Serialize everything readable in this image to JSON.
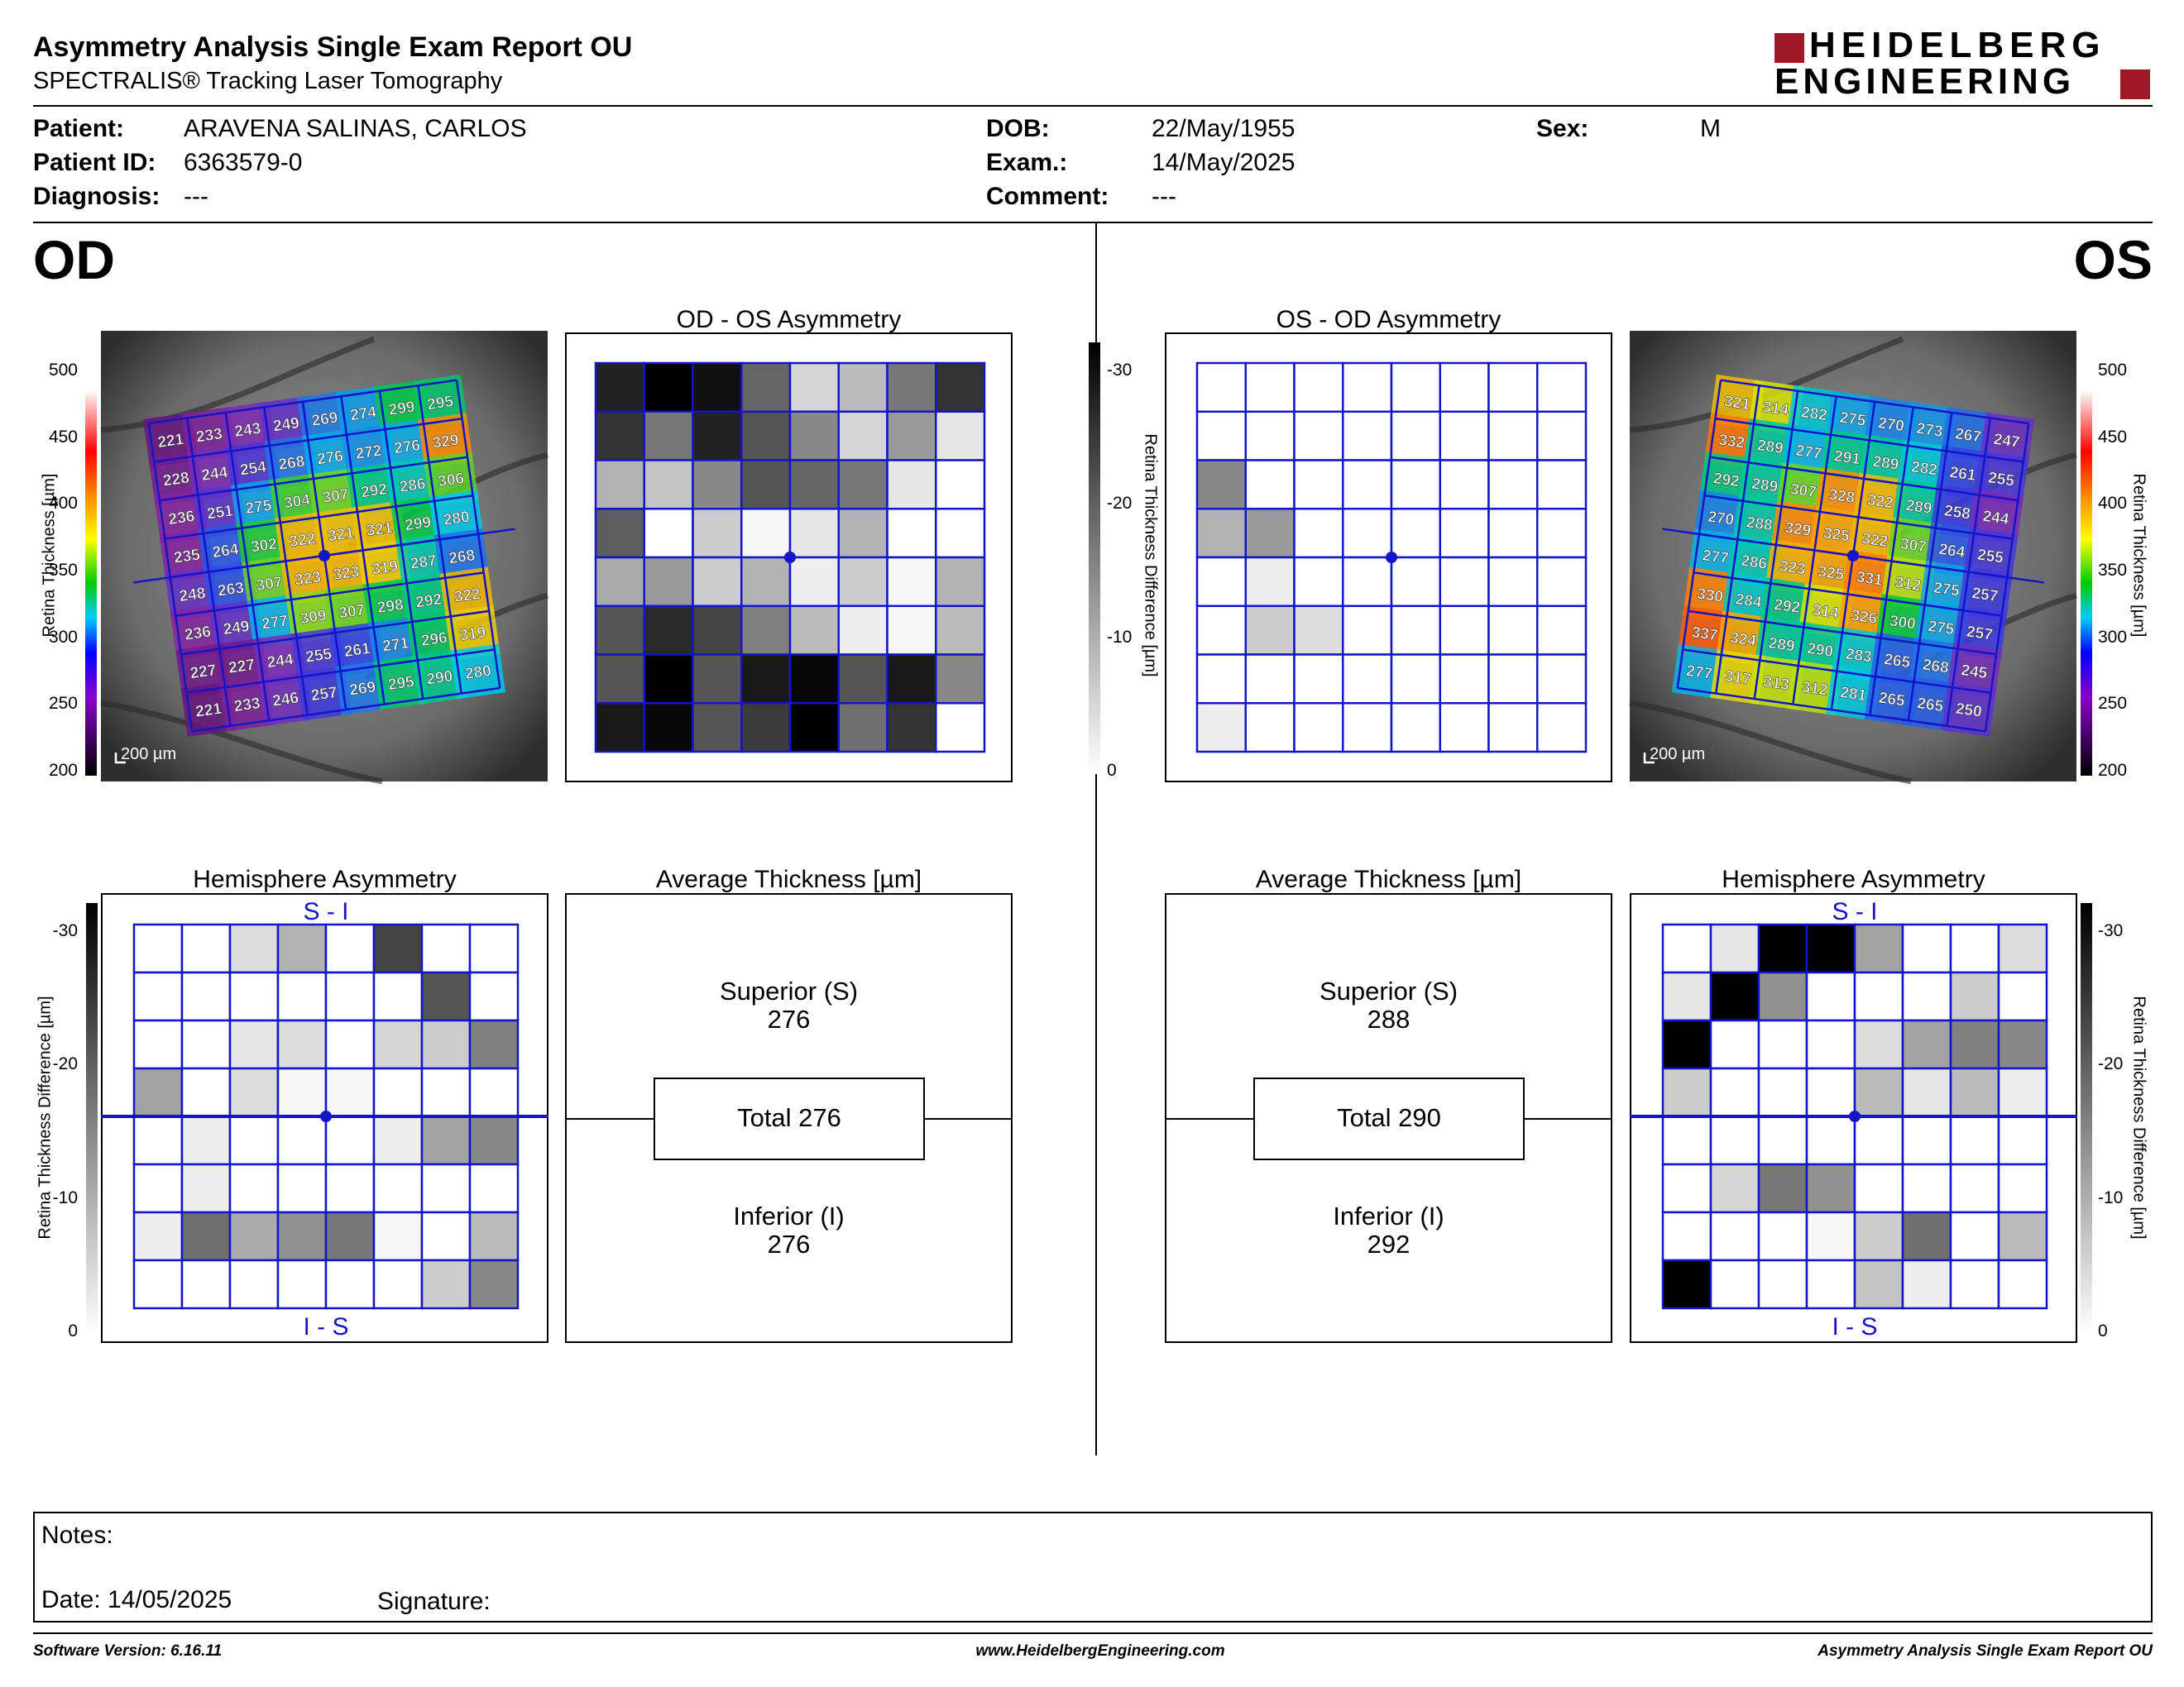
{
  "header": {
    "title": "Asymmetry Analysis Single Exam Report OU",
    "subtitle": "SPECTRALIS® Tracking Laser Tomography",
    "logo_line1": "HEIDELBERG",
    "logo_line2": "ENGINEERING"
  },
  "patient": {
    "patient_label": "Patient:",
    "patient_value": "ARAVENA SALINAS, CARLOS",
    "id_label": "Patient ID:",
    "id_value": "6363579-0",
    "diagnosis_label": "Diagnosis:",
    "diagnosis_value": "---",
    "dob_label": "DOB:",
    "dob_value": "22/May/1955",
    "exam_label": "Exam.:",
    "exam_value": "14/May/2025",
    "comment_label": "Comment:",
    "comment_value": "---",
    "sex_label": "Sex:",
    "sex_value": "M"
  },
  "eyes": {
    "left": "OD",
    "right": "OS"
  },
  "od": {
    "thickness_grid": [
      [
        221,
        233,
        243,
        249,
        269,
        274,
        299,
        295
      ],
      [
        228,
        244,
        254,
        268,
        276,
        272,
        276,
        329
      ],
      [
        236,
        251,
        275,
        304,
        307,
        292,
        286,
        306
      ],
      [
        235,
        264,
        302,
        322,
        321,
        321,
        299,
        280
      ],
      [
        248,
        263,
        307,
        323,
        323,
        319,
        287,
        268
      ],
      [
        236,
        249,
        277,
        309,
        307,
        298,
        292,
        322
      ],
      [
        227,
        227,
        244,
        255,
        261,
        271,
        296,
        319
      ],
      [
        221,
        233,
        246,
        257,
        269,
        295,
        290,
        280
      ]
    ],
    "scale_bar": "200 µm",
    "asym_title": "OD - OS Asymmetry",
    "asym_grid": [
      [
        26,
        30,
        28,
        18,
        5,
        8,
        16,
        24
      ],
      [
        24,
        16,
        26,
        20,
        14,
        5,
        12,
        3
      ],
      [
        9,
        7,
        14,
        20,
        18,
        16,
        3,
        0
      ],
      [
        19,
        0,
        6,
        1,
        3,
        9,
        0,
        0
      ],
      [
        10,
        12,
        6,
        9,
        2,
        6,
        1,
        9
      ],
      [
        20,
        25,
        22,
        15,
        8,
        2,
        1,
        8
      ],
      [
        20,
        30,
        20,
        27,
        29,
        20,
        27,
        14
      ],
      [
        27,
        29,
        20,
        23,
        30,
        17,
        24,
        0
      ]
    ],
    "hemi_title": "Hemisphere Asymmetry",
    "hemi_top": "S - I",
    "hemi_bottom": "I - S",
    "hemi_grid": [
      [
        0,
        0,
        4,
        9,
        0,
        22,
        0,
        0
      ],
      [
        0,
        0,
        0,
        0,
        0,
        0,
        20,
        0
      ],
      [
        0,
        0,
        3,
        4,
        0,
        5,
        6,
        15
      ],
      [
        11,
        0,
        4,
        1,
        1,
        0,
        0,
        0
      ],
      [
        0,
        2,
        0,
        0,
        0,
        2,
        11,
        14
      ],
      [
        0,
        2,
        0,
        0,
        0,
        0,
        0,
        0
      ],
      [
        2,
        17,
        10,
        13,
        16,
        1,
        0,
        8
      ],
      [
        0,
        0,
        0,
        0,
        0,
        0,
        6,
        14
      ]
    ],
    "avg_title": "Average Thickness [µm]",
    "superior_label": "Superior (S)",
    "superior_value": "276",
    "total_label": "Total 276",
    "inferior_label": "Inferior (I)",
    "inferior_value": "276"
  },
  "os": {
    "thickness_grid": [
      [
        321,
        314,
        282,
        275,
        270,
        273,
        267,
        247
      ],
      [
        332,
        289,
        277,
        291,
        289,
        282,
        261,
        255
      ],
      [
        292,
        289,
        307,
        328,
        322,
        289,
        258,
        244
      ],
      [
        270,
        288,
        329,
        325,
        322,
        307,
        264,
        255
      ],
      [
        277,
        286,
        323,
        325,
        331,
        312,
        275,
        257
      ],
      [
        330,
        284,
        292,
        314,
        326,
        300,
        275,
        257
      ],
      [
        337,
        324,
        289,
        290,
        283,
        265,
        268,
        245
      ],
      [
        277,
        317,
        313,
        312,
        281,
        265,
        265,
        250
      ]
    ],
    "scale_bar": "200 µm",
    "asym_title": "OS - OD Asymmetry",
    "asym_grid": [
      [
        0,
        0,
        0,
        0,
        0,
        0,
        0,
        0
      ],
      [
        0,
        0,
        0,
        0,
        0,
        0,
        0,
        0
      ],
      [
        14,
        0,
        0,
        0,
        0,
        0,
        0,
        0
      ],
      [
        9,
        12,
        0,
        0,
        0,
        0,
        0,
        0
      ],
      [
        0,
        2,
        0,
        0,
        0,
        0,
        0,
        0
      ],
      [
        0,
        6,
        4,
        0,
        0,
        0,
        0,
        0
      ],
      [
        0,
        0,
        0,
        0,
        0,
        0,
        0,
        0
      ],
      [
        2,
        0,
        0,
        0,
        0,
        0,
        0,
        0
      ]
    ],
    "hemi_title": "Hemisphere Asymmetry",
    "hemi_top": "S - I",
    "hemi_bottom": "I - S",
    "hemi_grid": [
      [
        0,
        3,
        30,
        30,
        11,
        0,
        0,
        4
      ],
      [
        3,
        30,
        13,
        0,
        0,
        0,
        6,
        0
      ],
      [
        30,
        0,
        0,
        0,
        4,
        11,
        15,
        14
      ],
      [
        6,
        0,
        0,
        0,
        8,
        3,
        8,
        2
      ],
      [
        0,
        0,
        0,
        0,
        0,
        0,
        0,
        0
      ],
      [
        0,
        5,
        16,
        13,
        0,
        0,
        0,
        0
      ],
      [
        0,
        0,
        0,
        1,
        6,
        17,
        0,
        8
      ],
      [
        30,
        0,
        0,
        0,
        7,
        2,
        0,
        0
      ]
    ],
    "avg_title": "Average Thickness [µm]",
    "superior_label": "Superior (S)",
    "superior_value": "288",
    "total_label": "Total 290",
    "inferior_label": "Inferior (I)",
    "inferior_value": "292"
  },
  "thickness_scale": {
    "label": "Retina Thickness [µm]",
    "ticks": [
      "500",
      "450",
      "400",
      "350",
      "300",
      "250",
      "200"
    ]
  },
  "difference_scale": {
    "label": "Retina Thickness Difference [µm]",
    "ticks": [
      "-30",
      "-20",
      "-10",
      "0"
    ]
  },
  "notes": {
    "notes_label": "Notes:",
    "date_label": "Date: 14/05/2025",
    "signature_label": "Signature:"
  },
  "footer": {
    "software": "Software Version: 6.16.11",
    "website": "www.HeidelbergEngineering.com",
    "report_name": "Asymmetry Analysis Single Exam Report OU"
  },
  "colors": {
    "grid_blue": "#1414c8",
    "logo_red": "#a01828",
    "text": "#000000"
  }
}
